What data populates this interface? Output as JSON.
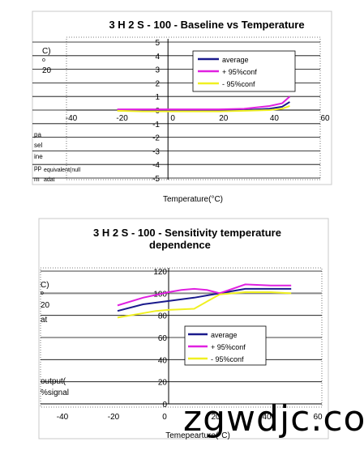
{
  "chart_data": [
    {
      "type": "line",
      "title": "3 H 2 S - 100 - Baseline  vs  Temperature",
      "xlabel": "Temperature(°C)",
      "ylabel_fragments": [
        "C)",
        "o",
        "20",
        "pa",
        "sel",
        "ine",
        "pp",
        "m",
        "equivalent(null",
        "adat"
      ],
      "xticks": [
        "-40",
        "-20",
        "0",
        "20",
        "40",
        "60"
      ],
      "yticks": [
        "5",
        "4",
        "3",
        "2",
        "1",
        "0",
        "-1",
        "-2",
        "-3",
        "-4",
        "-5"
      ],
      "xlim": [
        -40,
        60
      ],
      "ylim": [
        -5,
        5
      ],
      "legend_position": "top-right",
      "grid": true,
      "series": [
        {
          "name": "average",
          "color": "#1a1a8c",
          "x": [
            -20,
            -10,
            0,
            10,
            20,
            30,
            40,
            45,
            48
          ],
          "y": [
            0,
            -0.05,
            -0.05,
            -0.05,
            -0.05,
            0,
            0.1,
            0.25,
            0.6
          ]
        },
        {
          "name": "+   95%conf",
          "color": "#e020e0",
          "x": [
            -20,
            -10,
            0,
            10,
            20,
            30,
            40,
            45,
            48
          ],
          "y": [
            0.05,
            0.05,
            0.05,
            0.05,
            0.05,
            0.1,
            0.3,
            0.5,
            1.0
          ]
        },
        {
          "name": "-   95%conf",
          "color": "#f0f020",
          "x": [
            -20,
            -10,
            0,
            10,
            20,
            30,
            40,
            45,
            48
          ],
          "y": [
            -0.05,
            -0.1,
            -0.1,
            -0.1,
            -0.1,
            -0.05,
            0,
            0.1,
            0.3
          ]
        }
      ]
    },
    {
      "type": "line",
      "title_lines": [
        "3 H 2 S - 100 - Sensitivity  temperature",
        "dependence"
      ],
      "xlabel": "Temepearture(°C)",
      "ylabel_fragments": [
        "C)",
        "o",
        "20",
        "at",
        "output(",
        "%signal"
      ],
      "xticks": [
        "-40",
        "-20",
        "0",
        "20",
        "40",
        "60"
      ],
      "yticks": [
        "120",
        "100",
        "80",
        "60",
        "40",
        "20",
        "0"
      ],
      "xlim": [
        -40,
        60
      ],
      "ylim": [
        0,
        120
      ],
      "legend_position": "bottom-center",
      "grid": true,
      "series": [
        {
          "name": "average",
          "color": "#1a1a8c",
          "x": [
            -20,
            -10,
            0,
            10,
            20,
            30,
            40,
            48
          ],
          "y": [
            84,
            90,
            93,
            96,
            100,
            104,
            104,
            104
          ]
        },
        {
          "name": "+    95%conf",
          "color": "#e020e0",
          "x": [
            -20,
            -10,
            0,
            5,
            10,
            15,
            20,
            30,
            40,
            48
          ],
          "y": [
            89,
            96,
            101,
            103,
            104,
            103,
            100,
            108,
            107,
            107
          ]
        },
        {
          "name": "-    95%conf",
          "color": "#f0f020",
          "x": [
            -20,
            -10,
            -5,
            0,
            10,
            20,
            30,
            40,
            48
          ],
          "y": [
            78,
            82,
            84,
            85,
            86,
            99,
            101,
            101,
            100
          ]
        }
      ]
    }
  ],
  "watermark": "zgwdjc.co"
}
